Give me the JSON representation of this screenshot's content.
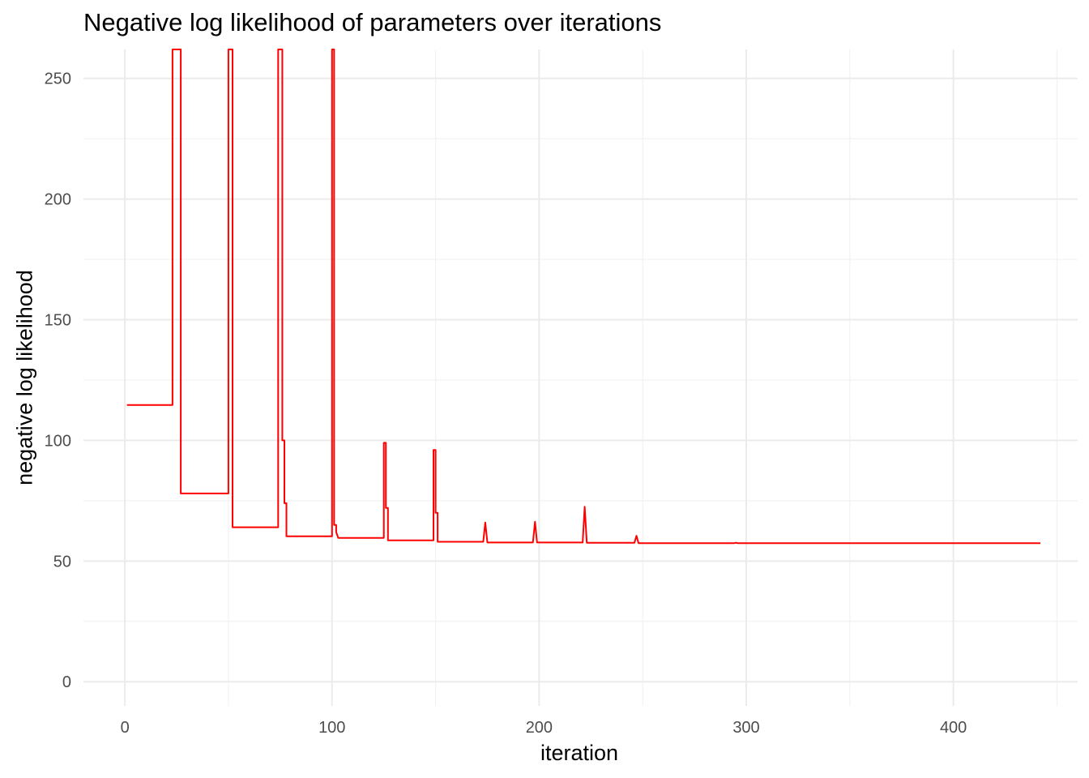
{
  "chart_data": {
    "type": "line",
    "title": "Negative log likelihood of parameters over iterations",
    "xlabel": "iteration",
    "ylabel": "negative log likelihood",
    "xlim": [
      -20,
      460
    ],
    "ylim": [
      -10,
      262
    ],
    "x_ticks": [
      0,
      100,
      200,
      300,
      400
    ],
    "y_ticks": [
      0,
      50,
      100,
      150,
      200,
      250
    ],
    "grid": true,
    "legend": "none",
    "series": [
      {
        "color": "#ff0000",
        "x": [
          1,
          23,
          23,
          24,
          27,
          27,
          28,
          50,
          50,
          51,
          52,
          52,
          53,
          74,
          74,
          75,
          76,
          76,
          77,
          77,
          78,
          78,
          79,
          100,
          100,
          101,
          101,
          102,
          102,
          103,
          104,
          125,
          125,
          126,
          126,
          127,
          127,
          149,
          149,
          150,
          150,
          151,
          151,
          173,
          174,
          175,
          197,
          198,
          199,
          221,
          222,
          223,
          246,
          247,
          248,
          294,
          295,
          296,
          442
        ],
        "y": [
          114.7,
          114.7,
          262,
          262,
          262,
          78,
          78,
          78,
          262,
          262,
          262,
          64,
          64,
          64,
          262,
          262,
          262,
          100,
          100,
          74,
          74,
          60.3,
          60.3,
          60.3,
          262,
          262,
          65,
          65,
          62,
          59.6,
          59.6,
          59.6,
          99,
          99,
          72,
          72,
          58.6,
          58.6,
          96,
          96,
          70,
          70,
          58,
          58,
          66,
          57.7,
          57.7,
          66.3,
          57.7,
          57.7,
          72.5,
          57.6,
          57.6,
          60.5,
          57.4,
          57.4,
          57.6,
          57.4,
          57.4
        ]
      }
    ]
  }
}
